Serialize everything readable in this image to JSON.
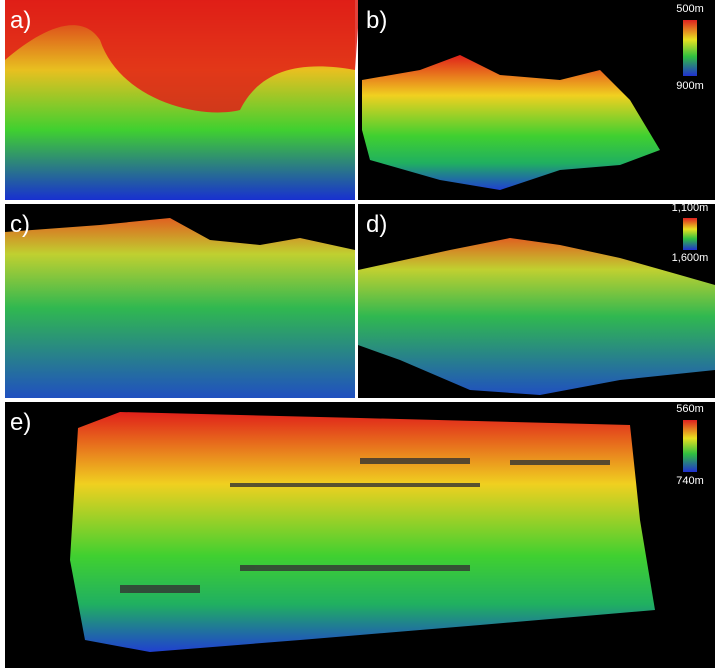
{
  "panels": [
    {
      "label": "a)"
    },
    {
      "label": "b)",
      "colorbar": {
        "top": "500m",
        "bottom": "900m"
      }
    },
    {
      "label": "c)"
    },
    {
      "label": "d)",
      "colorbar": {
        "top": "1,100m",
        "bottom": "1,600m"
      }
    },
    {
      "label": "e)",
      "colorbar": {
        "top": "560m",
        "bottom": "740m"
      }
    }
  ]
}
